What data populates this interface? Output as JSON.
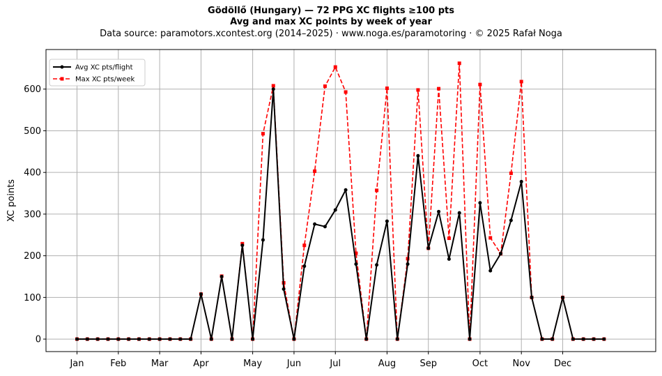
{
  "chart_data": {
    "type": "line",
    "title": "Gödöllő (Hungary)  —  72 PPG XC flights ≥100 pts",
    "subtitle": "Avg and max XC points by week of year",
    "source_note": "Data source: paramotors.xcontest.org (2014–2025)  ·  www.noga.es/paramotoring  ·  © 2025 Rafał Noga",
    "xlabel": "",
    "ylabel": "XC points",
    "xlim": [
      -2,
      57
    ],
    "ylim": [
      -30,
      695
    ],
    "grid": true,
    "legend_position": "upper-left",
    "x_ticks": [
      {
        "label": "Jan",
        "week": 1
      },
      {
        "label": "Feb",
        "week": 5
      },
      {
        "label": "Mar",
        "week": 9
      },
      {
        "label": "Apr",
        "week": 13
      },
      {
        "label": "May",
        "week": 18
      },
      {
        "label": "Jun",
        "week": 22
      },
      {
        "label": "Jul",
        "week": 26
      },
      {
        "label": "Aug",
        "week": 31
      },
      {
        "label": "Sep",
        "week": 35
      },
      {
        "label": "Oct",
        "week": 40
      },
      {
        "label": "Nov",
        "week": 44
      },
      {
        "label": "Dec",
        "week": 48
      }
    ],
    "y_ticks": [
      0,
      100,
      200,
      300,
      400,
      500,
      600
    ],
    "x": [
      1,
      2,
      3,
      4,
      5,
      6,
      7,
      8,
      9,
      10,
      11,
      12,
      13,
      14,
      15,
      16,
      17,
      18,
      19,
      20,
      21,
      22,
      23,
      24,
      25,
      26,
      27,
      28,
      29,
      30,
      31,
      32,
      33,
      34,
      35,
      36,
      37,
      38,
      39,
      40,
      41,
      42,
      43,
      44,
      45,
      46,
      47,
      48,
      49,
      50,
      51,
      52
    ],
    "series": [
      {
        "name": "Avg XC pts/flight",
        "color": "#000000",
        "style": "solid",
        "marker": "circle",
        "values": [
          0,
          0,
          0,
          0,
          0,
          0,
          0,
          0,
          0,
          0,
          0,
          0,
          108,
          0,
          150,
          0,
          225,
          0,
          238,
          600,
          120,
          0,
          175,
          276,
          270,
          310,
          358,
          180,
          0,
          178,
          283,
          0,
          180,
          440,
          218,
          306,
          192,
          303,
          0,
          327,
          164,
          205,
          285,
          378,
          100,
          0,
          0,
          100,
          0,
          0,
          0,
          0
        ]
      },
      {
        "name": "Max XC pts/week",
        "color": "#ff0000",
        "style": "dashed",
        "marker": "square",
        "values": [
          0,
          0,
          0,
          0,
          0,
          0,
          0,
          0,
          0,
          0,
          0,
          0,
          108,
          0,
          151,
          0,
          229,
          0,
          493,
          608,
          135,
          0,
          225,
          403,
          607,
          653,
          593,
          206,
          0,
          357,
          602,
          0,
          193,
          598,
          218,
          601,
          242,
          662,
          0,
          611,
          243,
          205,
          398,
          618,
          100,
          0,
          0,
          100,
          0,
          0,
          0,
          0
        ]
      }
    ]
  }
}
